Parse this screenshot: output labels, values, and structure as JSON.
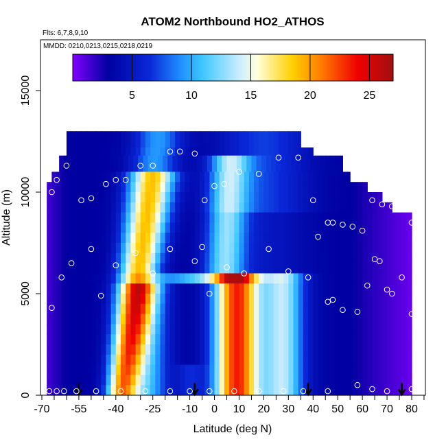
{
  "chart_data": {
    "type": "heatmap",
    "title": "ATOM2 Northbound HO2_ATHOS",
    "flights_note": "Flts: 6,7,8,9,10",
    "dates_note": "MMDD: 0210,0213,0215,0218,0219",
    "xlabel": "Latitude (deg N)",
    "ylabel": "Altitude (m)",
    "xlim": [
      -70,
      85
    ],
    "ylim": [
      0,
      17500
    ],
    "x_ticks": [
      -70,
      -55,
      -40,
      -25,
      -10,
      0,
      10,
      20,
      30,
      40,
      50,
      60,
      70,
      80
    ],
    "x_tick_labels": [
      "-70",
      "-55",
      "-40",
      "-25",
      "-10",
      "0",
      "10",
      "20",
      "30",
      "40",
      "50",
      "60",
      "70",
      "80"
    ],
    "x_minor_ticks": [
      -65,
      -60,
      -50,
      -45,
      -35,
      -30,
      -20,
      -15,
      -5,
      5,
      15,
      25,
      35,
      45,
      55,
      65,
      75,
      85
    ],
    "y_ticks": [
      0,
      5000,
      10000,
      15000
    ],
    "y_tick_labels": [
      "0",
      "5000",
      "10000",
      "15000"
    ],
    "colorbar": {
      "min": 0,
      "max": 27,
      "ticks": [
        5,
        10,
        15,
        20,
        25
      ],
      "tick_labels": [
        "5",
        "10",
        "15",
        "20",
        "25"
      ],
      "colors": [
        "#8000ff",
        "#0000a0",
        "#0a28d8",
        "#1e8cff",
        "#40c8ff",
        "#c8ecff",
        "#ffffe0",
        "#ffd000",
        "#ff7a00",
        "#f00000",
        "#a01010"
      ],
      "stops": [
        0,
        3,
        6.5,
        9,
        11,
        14,
        15.5,
        18.5,
        21,
        24,
        27
      ]
    },
    "grid": false,
    "altitude_bins_top_m": [
      13000,
      12200,
      11800,
      11000,
      10500,
      10000,
      9500,
      9000,
      8500,
      8000,
      7500,
      7000,
      6500,
      6000,
      5500,
      5000,
      4500,
      4000,
      3500,
      3000,
      2500,
      2000,
      1500,
      1000,
      500
    ],
    "row_lat_extent": [
      [
        -60,
        35
      ],
      [
        -60,
        40
      ],
      [
        -63,
        52
      ],
      [
        -66,
        55
      ],
      [
        -68,
        62
      ],
      [
        -68,
        68
      ],
      [
        -68,
        72
      ],
      [
        -68,
        80
      ],
      [
        -68,
        80
      ],
      [
        -68,
        80
      ],
      [
        -68,
        80
      ],
      [
        -68,
        80
      ],
      [
        -68,
        80
      ],
      [
        -68,
        80
      ],
      [
        -68,
        80
      ],
      [
        -68,
        80
      ],
      [
        -68,
        80
      ],
      [
        -68,
        80
      ],
      [
        -68,
        80
      ],
      [
        -68,
        80
      ],
      [
        -68,
        80
      ],
      [
        -68,
        80
      ],
      [
        -68,
        80
      ],
      [
        -68,
        80
      ],
      [
        -68,
        80
      ]
    ],
    "profile_lats": [
      -55,
      -8,
      38,
      76
    ],
    "sample_points": [
      [
        -67,
        200
      ],
      [
        -64,
        200
      ],
      [
        -61,
        200
      ],
      [
        -56,
        200
      ],
      [
        -48,
        200
      ],
      [
        -38,
        200
      ],
      [
        -28,
        200
      ],
      [
        -18,
        200
      ],
      [
        -10,
        200
      ],
      [
        -2,
        200
      ],
      [
        8,
        200
      ],
      [
        18,
        200
      ],
      [
        28,
        200
      ],
      [
        36,
        200
      ],
      [
        46,
        200
      ],
      [
        58,
        500
      ],
      [
        64,
        300
      ],
      [
        70,
        200
      ],
      [
        80,
        300
      ],
      [
        -66,
        4300
      ],
      [
        -62,
        5800
      ],
      [
        -58,
        6500
      ],
      [
        -50,
        7200
      ],
      [
        -46,
        4900
      ],
      [
        -40,
        6400
      ],
      [
        -32,
        7000
      ],
      [
        -25,
        6000
      ],
      [
        -18,
        7200
      ],
      [
        -8,
        6600
      ],
      [
        -5,
        7300
      ],
      [
        -2,
        5000
      ],
      [
        5,
        6300
      ],
      [
        12,
        6000
      ],
      [
        22,
        7200
      ],
      [
        30,
        6100
      ],
      [
        38,
        5800
      ],
      [
        46,
        4600
      ],
      [
        48,
        4700
      ],
      [
        52,
        4200
      ],
      [
        58,
        4100
      ],
      [
        62,
        5400
      ],
      [
        65,
        6700
      ],
      [
        67,
        6600
      ],
      [
        70,
        5200
      ],
      [
        76,
        5800
      ],
      [
        80,
        4000
      ],
      [
        72,
        5000
      ],
      [
        -66,
        10000
      ],
      [
        -64,
        10600
      ],
      [
        -60,
        11300
      ],
      [
        -54,
        9600
      ],
      [
        -50,
        9700
      ],
      [
        -44,
        10400
      ],
      [
        -40,
        10600
      ],
      [
        -36,
        10600
      ],
      [
        -30,
        11300
      ],
      [
        -25,
        11300
      ],
      [
        -18,
        12000
      ],
      [
        -14,
        12000
      ],
      [
        -8,
        11900
      ],
      [
        -4,
        9600
      ],
      [
        0,
        10300
      ],
      [
        4,
        10400
      ],
      [
        10,
        11000
      ],
      [
        18,
        10900
      ],
      [
        26,
        11700
      ],
      [
        34,
        11700
      ],
      [
        40,
        9600
      ],
      [
        42,
        7800
      ],
      [
        46,
        8500
      ],
      [
        48,
        8500
      ],
      [
        52,
        8400
      ],
      [
        56,
        8300
      ],
      [
        60,
        8100
      ],
      [
        64,
        9600
      ],
      [
        68,
        9400
      ],
      [
        72,
        9300
      ],
      [
        80,
        8500
      ]
    ]
  }
}
